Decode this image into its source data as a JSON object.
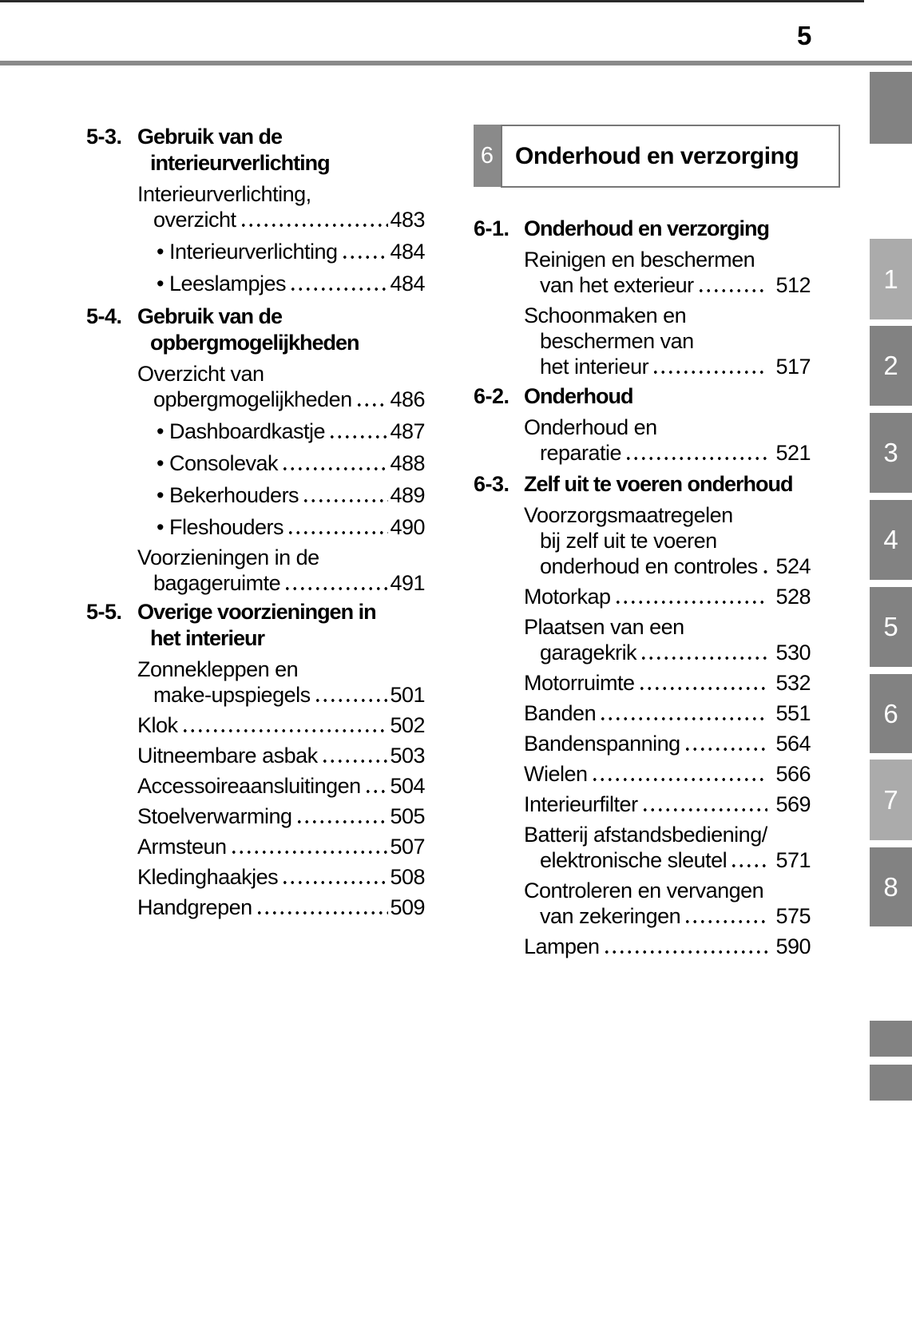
{
  "page": {
    "number": "5"
  },
  "banner": {
    "chapter_number": "6",
    "title": "Onderhoud en verzorging"
  },
  "left_column": {
    "sections": [
      {
        "number": "5-3.",
        "title_lines": [
          "Gebruik van de",
          "interieurverlichting"
        ],
        "entries": [
          {
            "lines": [
              "Interieurverlichting,",
              "overzicht"
            ],
            "page": "483"
          },
          {
            "bullet": true,
            "lines": [
              "Interieurverlichting"
            ],
            "page": "484"
          },
          {
            "bullet": true,
            "lines": [
              "Leeslampjes"
            ],
            "page": "484"
          }
        ]
      },
      {
        "number": "5-4.",
        "title_lines": [
          "Gebruik van de",
          "opbergmogelijkheden"
        ],
        "entries": [
          {
            "lines": [
              "Overzicht van",
              "opbergmogelijkheden"
            ],
            "page": "486"
          },
          {
            "bullet": true,
            "lines": [
              "Dashboardkastje"
            ],
            "page": "487"
          },
          {
            "bullet": true,
            "lines": [
              "Consolevak"
            ],
            "page": "488"
          },
          {
            "bullet": true,
            "lines": [
              "Bekerhouders"
            ],
            "page": "489"
          },
          {
            "bullet": true,
            "lines": [
              "Fleshouders"
            ],
            "page": "490"
          },
          {
            "lines": [
              "Voorzieningen in de",
              "bagageruimte"
            ],
            "page": "491"
          }
        ]
      },
      {
        "number": "5-5.",
        "title_lines": [
          "Overige voorzieningen in",
          "het interieur"
        ],
        "entries": [
          {
            "lines": [
              "Zonnekleppen en",
              "make-upspiegels"
            ],
            "page": "501"
          },
          {
            "lines": [
              "Klok"
            ],
            "page": "502"
          },
          {
            "lines": [
              "Uitneembare asbak"
            ],
            "page": "503"
          },
          {
            "lines": [
              "Accessoireaansluitingen"
            ],
            "page": "504"
          },
          {
            "lines": [
              "Stoelverwarming"
            ],
            "page": "505"
          },
          {
            "lines": [
              "Armsteun"
            ],
            "page": "507"
          },
          {
            "lines": [
              "Kledinghaakjes"
            ],
            "page": "508"
          },
          {
            "lines": [
              "Handgrepen"
            ],
            "page": "509"
          }
        ]
      }
    ]
  },
  "right_column": {
    "sections": [
      {
        "number": "6-1.",
        "title_lines": [
          "Onderhoud en verzorging"
        ],
        "entries": [
          {
            "lines": [
              "Reinigen en beschermen",
              "van het exterieur"
            ],
            "page": "512"
          },
          {
            "lines": [
              "Schoonmaken en",
              "beschermen van",
              "het interieur"
            ],
            "page": "517"
          }
        ]
      },
      {
        "number": "6-2.",
        "title_lines": [
          "Onderhoud"
        ],
        "entries": [
          {
            "lines": [
              "Onderhoud en",
              "reparatie"
            ],
            "page": "521"
          }
        ]
      },
      {
        "number": "6-3.",
        "title_lines": [
          "Zelf uit te voeren onderhoud"
        ],
        "entries": [
          {
            "lines": [
              "Voorzorgsmaatregelen",
              "bij zelf uit te voeren",
              "onderhoud en controles"
            ],
            "page": "524"
          },
          {
            "lines": [
              "Motorkap"
            ],
            "page": "528"
          },
          {
            "lines": [
              "Plaatsen van een",
              "garagekrik"
            ],
            "page": "530"
          },
          {
            "lines": [
              "Motorruimte"
            ],
            "page": "532"
          },
          {
            "lines": [
              "Banden"
            ],
            "page": "551"
          },
          {
            "lines": [
              "Bandenspanning"
            ],
            "page": "564"
          },
          {
            "lines": [
              "Wielen"
            ],
            "page": "566"
          },
          {
            "lines": [
              "Interieurfilter"
            ],
            "page": "569"
          },
          {
            "lines": [
              "Batterij afstandsbediening/",
              "elektronische sleutel"
            ],
            "page": "571"
          },
          {
            "lines": [
              "Controleren en vervangen",
              "van zekeringen"
            ],
            "page": "575"
          },
          {
            "lines": [
              "Lampen"
            ],
            "page": "590"
          }
        ]
      }
    ]
  },
  "side_tabs": [
    {
      "label": "",
      "shade": "dark"
    },
    {
      "label": "1",
      "shade": "light"
    },
    {
      "label": "2",
      "shade": "dark"
    },
    {
      "label": "3",
      "shade": "dark"
    },
    {
      "label": "4",
      "shade": "dark"
    },
    {
      "label": "5",
      "shade": "dark"
    },
    {
      "label": "6",
      "shade": "dark"
    },
    {
      "label": "7",
      "shade": "light"
    },
    {
      "label": "8",
      "shade": "dark"
    },
    {
      "label": "",
      "shade": "dark"
    },
    {
      "label": "",
      "shade": "dark"
    }
  ],
  "colors": {
    "text": "#000000",
    "tab_dark": "#828282",
    "tab_light": "#ababab",
    "rule": "#8a8a8a",
    "badge": "#8a8a8a",
    "banner_border": "#777777",
    "tab_text": "#ffffff"
  }
}
